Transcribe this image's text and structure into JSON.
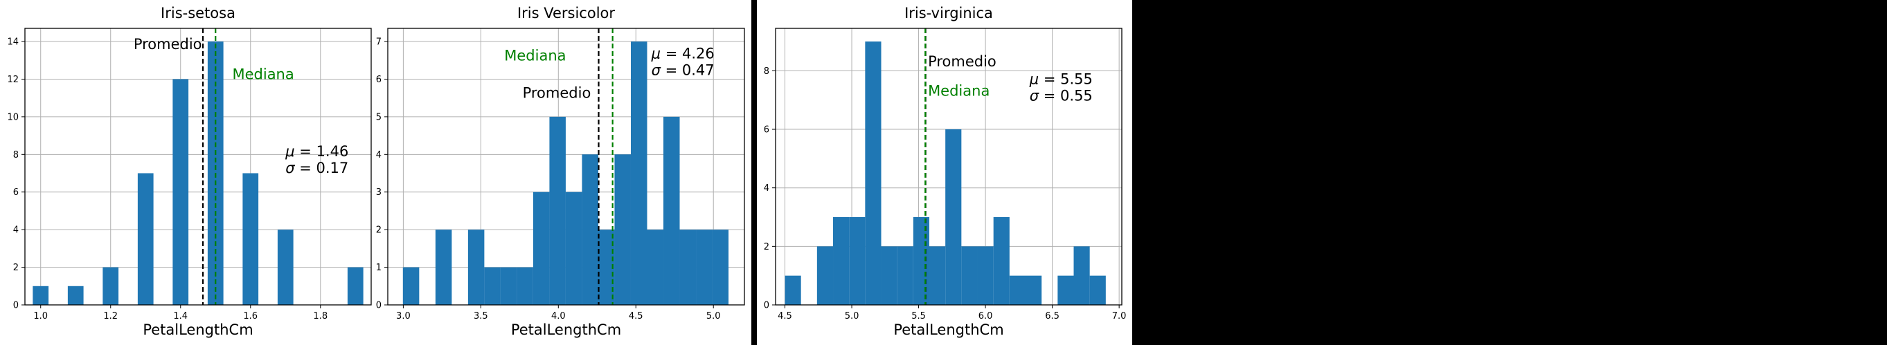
{
  "charts": [
    {
      "title": "Iris-setosa",
      "xlabel": "PetalLengthCm",
      "xlim": [
        0.955,
        1.945
      ],
      "ylim": [
        0,
        14.7
      ],
      "xticks": [
        1.0,
        1.2,
        1.4,
        1.6,
        1.8
      ],
      "xtick_labels": [
        "1.0",
        "1.2",
        "1.4",
        "1.6",
        "1.8"
      ],
      "yticks": [
        0,
        2,
        4,
        6,
        8,
        10,
        12,
        14
      ],
      "ytick_labels": [
        "0",
        "2",
        "4",
        "6",
        "8",
        "10",
        "12",
        "14"
      ],
      "bar_width": 0.045,
      "bars": [
        {
          "x": 1.0,
          "count": 1
        },
        {
          "x": 1.1,
          "count": 1
        },
        {
          "x": 1.2,
          "count": 2
        },
        {
          "x": 1.3,
          "count": 7
        },
        {
          "x": 1.4,
          "count": 12
        },
        {
          "x": 1.5,
          "count": 14
        },
        {
          "x": 1.6,
          "count": 7
        },
        {
          "x": 1.7,
          "count": 4
        },
        {
          "x": 1.9,
          "count": 2
        }
      ],
      "mean": 1.464,
      "median": 1.5,
      "mean_label": "Promedio",
      "median_label": "Mediana",
      "mean_label_pos": {
        "x": 1.461,
        "y": 13.6,
        "anchor": "end"
      },
      "median_label_pos": {
        "x": 1.548,
        "y": 12.0,
        "anchor": "start"
      },
      "stats_mu": "1.46",
      "stats_sigma": "0.17",
      "stats_pos": {
        "x": 1.7,
        "y": 7.9
      }
    },
    {
      "title": "Iris Versicolor",
      "xlabel": "PetalLengthCm",
      "xlim": [
        2.9,
        5.2
      ],
      "ylim": [
        0,
        7.35
      ],
      "xticks": [
        3.0,
        3.5,
        4.0,
        4.5,
        5.0
      ],
      "xtick_labels": [
        "3.0",
        "3.5",
        "4.0",
        "4.5",
        "5.0"
      ],
      "yticks": [
        0,
        1,
        2,
        3,
        4,
        5,
        6,
        7
      ],
      "ytick_labels": [
        "0",
        "1",
        "2",
        "3",
        "4",
        "5",
        "6",
        "7"
      ],
      "bar_width": 0.105,
      "bars": [
        {
          "x": 3.05,
          "count": 1
        },
        {
          "x": 3.26,
          "count": 2
        },
        {
          "x": 3.47,
          "count": 2
        },
        {
          "x": 3.575,
          "count": 1
        },
        {
          "x": 3.68,
          "count": 1
        },
        {
          "x": 3.785,
          "count": 1
        },
        {
          "x": 3.89,
          "count": 3
        },
        {
          "x": 3.995,
          "count": 5
        },
        {
          "x": 4.1,
          "count": 3
        },
        {
          "x": 4.205,
          "count": 4
        },
        {
          "x": 4.31,
          "count": 2
        },
        {
          "x": 4.415,
          "count": 4
        },
        {
          "x": 4.52,
          "count": 7
        },
        {
          "x": 4.625,
          "count": 2
        },
        {
          "x": 4.73,
          "count": 5
        },
        {
          "x": 4.835,
          "count": 2
        },
        {
          "x": 4.94,
          "count": 2
        },
        {
          "x": 5.045,
          "count": 2
        }
      ],
      "mean": 4.26,
      "median": 4.35,
      "mean_label": "Promedio",
      "median_label": "Mediana",
      "mean_label_pos": {
        "x": 4.21,
        "y": 5.5,
        "anchor": "end"
      },
      "median_label_pos": {
        "x": 4.05,
        "y": 6.5,
        "anchor": "end"
      },
      "stats_mu": "4.26",
      "stats_sigma": "0.47",
      "stats_pos": {
        "x": 4.6,
        "y": 6.55
      }
    },
    {
      "title": "Iris-virginica",
      "xlabel": "PetalLengthCm",
      "xlim": [
        4.43,
        7.02
      ],
      "ylim": [
        0,
        9.45
      ],
      "xticks": [
        4.5,
        5.0,
        5.5,
        6.0,
        6.5,
        7.0
      ],
      "xtick_labels": [
        "4.5",
        "5.0",
        "5.5",
        "6.0",
        "6.5",
        "7.0"
      ],
      "yticks": [
        0,
        2,
        4,
        6,
        8
      ],
      "ytick_labels": [
        "0",
        "2",
        "4",
        "6",
        "8"
      ],
      "bar_width": 0.12,
      "bars": [
        {
          "x": 4.56,
          "count": 1
        },
        {
          "x": 4.8,
          "count": 2
        },
        {
          "x": 4.92,
          "count": 3
        },
        {
          "x": 5.04,
          "count": 3
        },
        {
          "x": 5.16,
          "count": 9
        },
        {
          "x": 5.28,
          "count": 2
        },
        {
          "x": 5.4,
          "count": 2
        },
        {
          "x": 5.52,
          "count": 3
        },
        {
          "x": 5.64,
          "count": 2
        },
        {
          "x": 5.76,
          "count": 6
        },
        {
          "x": 5.88,
          "count": 2
        },
        {
          "x": 6.0,
          "count": 2
        },
        {
          "x": 6.12,
          "count": 3
        },
        {
          "x": 6.24,
          "count": 1
        },
        {
          "x": 6.36,
          "count": 1
        },
        {
          "x": 6.6,
          "count": 1
        },
        {
          "x": 6.72,
          "count": 2
        },
        {
          "x": 6.84,
          "count": 1
        }
      ],
      "mean": 5.552,
      "median": 5.55,
      "mean_label": "Promedio",
      "median_label": "Mediana",
      "mean_label_pos": {
        "x": 5.57,
        "y": 8.15,
        "anchor": "start"
      },
      "median_label_pos": {
        "x": 5.57,
        "y": 7.15,
        "anchor": "start"
      },
      "stats_mu": "5.55",
      "stats_sigma": "0.55",
      "stats_pos": {
        "x": 6.33,
        "y": 7.55
      }
    }
  ],
  "colors": {
    "bar": "#1f77b4",
    "mean_line": "#000000",
    "median_line": "#008000",
    "median_text": "#008000",
    "grid": "#b0b0b0",
    "background": "#000000",
    "panel": "#ffffff"
  }
}
